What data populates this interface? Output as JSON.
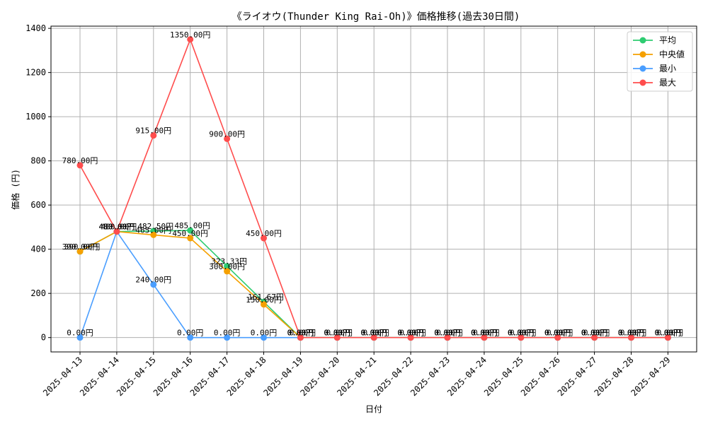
{
  "chart_data": {
    "type": "line",
    "title": "《ライオウ(Thunder King Rai-Oh)》価格推移(過去30日間)",
    "xlabel": "日付",
    "ylabel": "価格 (円)",
    "ylim": [
      -65,
      1410
    ],
    "yticks": [
      0,
      200,
      400,
      600,
      800,
      1000,
      1200,
      1400
    ],
    "grid": true,
    "legend_position": "top-right",
    "label_suffix": "円",
    "categories": [
      "2025-04-13",
      "2025-04-14",
      "2025-04-15",
      "2025-04-16",
      "2025-04-17",
      "2025-04-18",
      "2025-04-19",
      "2025-04-20",
      "2025-04-21",
      "2025-04-22",
      "2025-04-23",
      "2025-04-24",
      "2025-04-25",
      "2025-04-26",
      "2025-04-27",
      "2025-04-28",
      "2025-04-29"
    ],
    "series": [
      {
        "name": "平均",
        "color": "#2ecc71",
        "values": [
          390.0,
          480.0,
          482.5,
          485.0,
          323.33,
          161.67,
          0,
          0,
          0,
          0,
          0,
          0,
          0,
          0,
          0,
          0,
          0
        ]
      },
      {
        "name": "中央値",
        "color": "#f5a000",
        "values": [
          390.0,
          480.0,
          465.0,
          450.0,
          300.0,
          150.0,
          0,
          0,
          0,
          0,
          0,
          0,
          0,
          0,
          0,
          0,
          0
        ]
      },
      {
        "name": "最小",
        "color": "#4a9eff",
        "values": [
          0,
          480.0,
          240.0,
          0,
          0,
          0,
          0,
          0,
          0,
          0,
          0,
          0,
          0,
          0,
          0,
          0,
          0
        ]
      },
      {
        "name": "最大",
        "color": "#ff4d4d",
        "values": [
          780.0,
          480.0,
          915.0,
          1350.0,
          900.0,
          450.0,
          0,
          0,
          0,
          0,
          0,
          0,
          0,
          0,
          0,
          0,
          0
        ]
      }
    ]
  }
}
